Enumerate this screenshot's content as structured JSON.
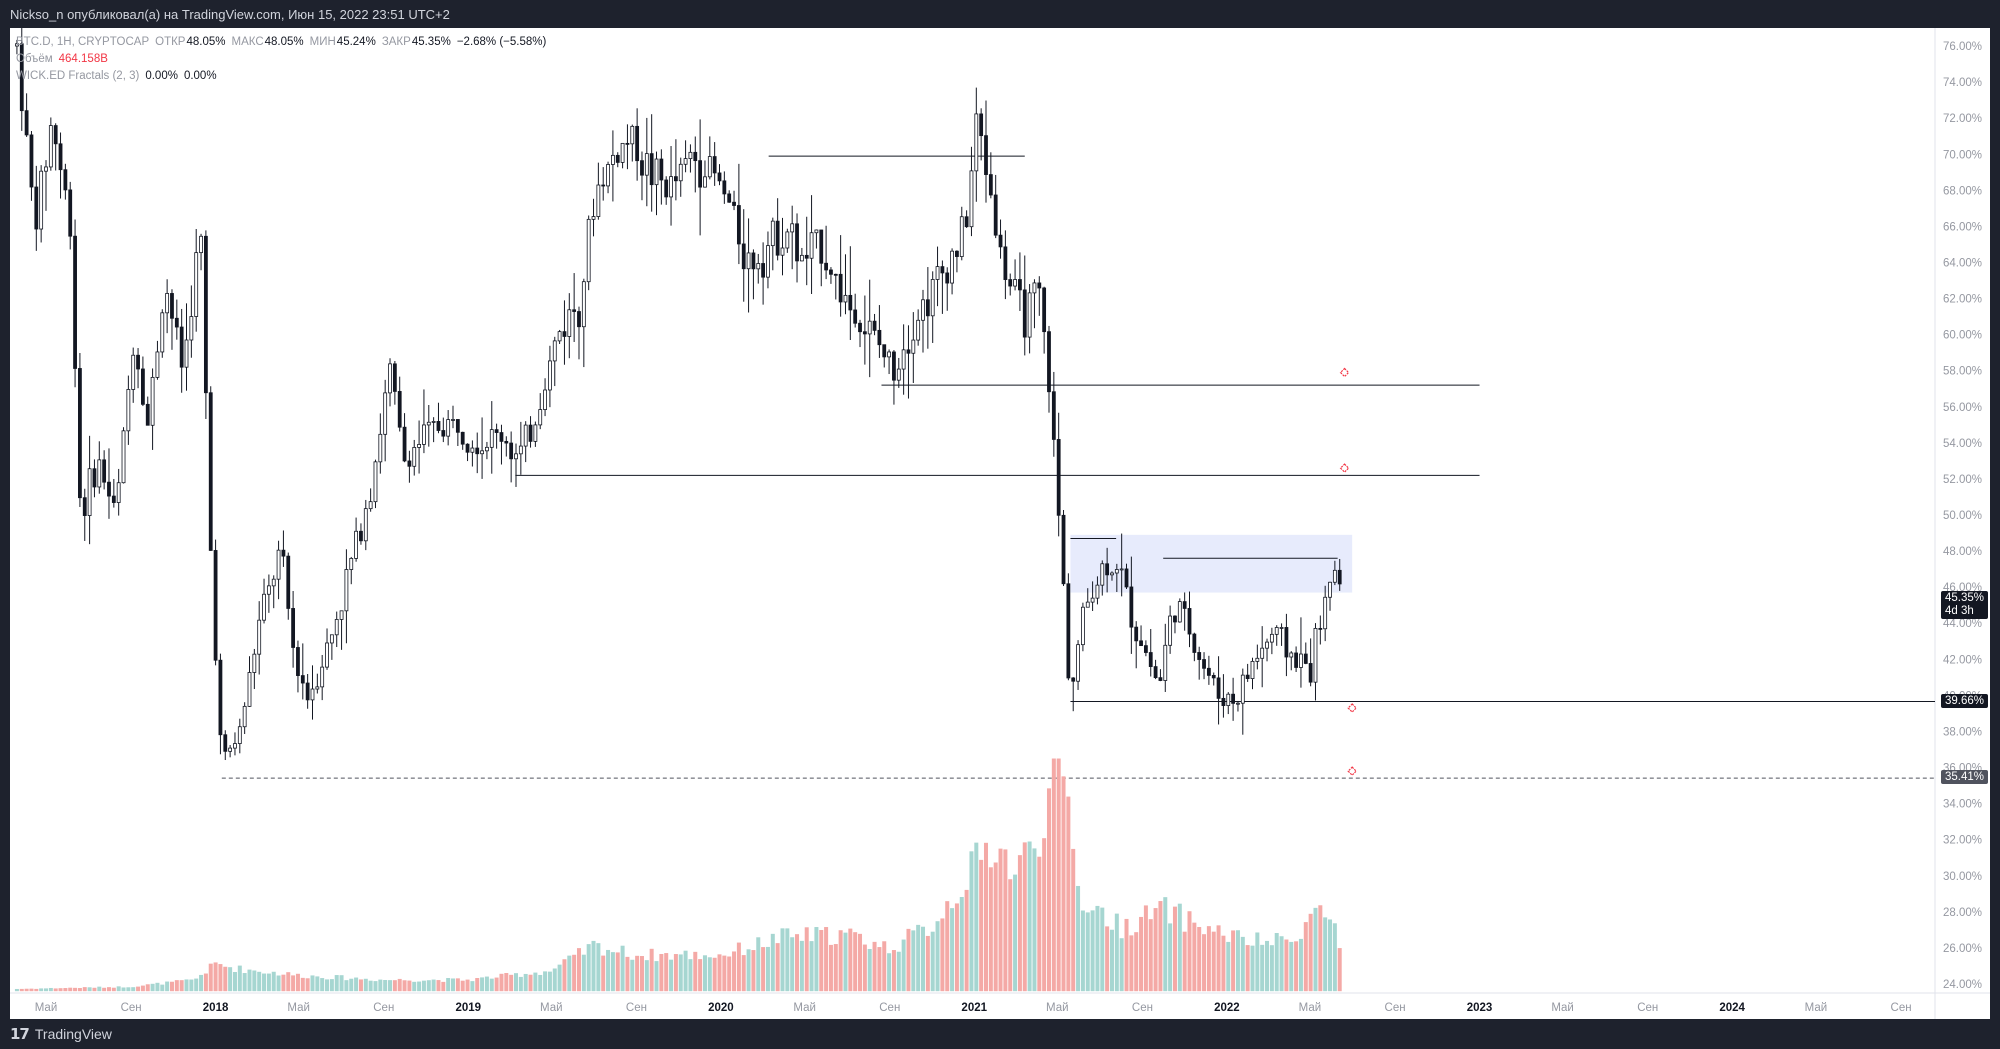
{
  "header": {
    "publish_line": "Nickso_n опубликовал(а) на TradingView.com, Июн 15, 2022 23:51 UTC+2"
  },
  "legend": {
    "symbol": "BTC.D, 1Н, CRYPTOCAP",
    "open_label": "ОТКР",
    "open_value": "48.05%",
    "high_label": "МАКС",
    "high_value": "48.05%",
    "low_label": "МИН",
    "low_value": "45.24%",
    "close_label": "ЗАКР",
    "close_value": "45.35%",
    "change": "−2.68% (−5.58%)",
    "volume_label": "Объём",
    "volume_value": "464.158B",
    "indicator_label": "WICK.ED Fractals (2, 3)",
    "indicator_v1": "0.00%",
    "indicator_v2": "0.00%"
  },
  "price_tags": {
    "current_value": "45.35%",
    "current_countdown": "4d 3h",
    "support_value": "39.66%",
    "low_value": "35.41%"
  },
  "footer": {
    "brand": "TradingView"
  },
  "colors": {
    "up_volume": "#a6d6d1",
    "down_volume": "#f4a9a6",
    "candle": "#131722",
    "zone": "#e3e8fb",
    "fractal": "#f23645"
  },
  "chart_data": {
    "type": "candlestick",
    "ylim": [
      23.5,
      77
    ],
    "yticks": [
      "24.00%",
      "26.00%",
      "28.00%",
      "30.00%",
      "32.00%",
      "34.00%",
      "36.00%",
      "38.00%",
      "40.00%",
      "42.00%",
      "44.00%",
      "46.00%",
      "48.00%",
      "50.00%",
      "52.00%",
      "54.00%",
      "56.00%",
      "58.00%",
      "60.00%",
      "62.00%",
      "64.00%",
      "66.00%",
      "68.00%",
      "70.00%",
      "72.00%",
      "74.00%",
      "76.00%"
    ],
    "xticks": [
      {
        "label": "Май",
        "date": "2017-05"
      },
      {
        "label": "Сен",
        "date": "2017-09"
      },
      {
        "label": "2018",
        "date": "2018-01"
      },
      {
        "label": "Май",
        "date": "2018-05"
      },
      {
        "label": "Сен",
        "date": "2018-09"
      },
      {
        "label": "2019",
        "date": "2019-01"
      },
      {
        "label": "Май",
        "date": "2019-05"
      },
      {
        "label": "Сен",
        "date": "2019-09"
      },
      {
        "label": "2020",
        "date": "2020-01"
      },
      {
        "label": "Май",
        "date": "2020-05"
      },
      {
        "label": "Сен",
        "date": "2020-09"
      },
      {
        "label": "2021",
        "date": "2021-01"
      },
      {
        "label": "Май",
        "date": "2021-05"
      },
      {
        "label": "Сен",
        "date": "2021-09"
      },
      {
        "label": "2022",
        "date": "2022-01"
      },
      {
        "label": "Май",
        "date": "2022-05"
      },
      {
        "label": "Сен",
        "date": "2022-09"
      },
      {
        "label": "2023",
        "date": "2023-01"
      },
      {
        "label": "Май",
        "date": "2023-05"
      },
      {
        "label": "Сен",
        "date": "2023-09"
      },
      {
        "label": "2024",
        "date": "2024-01"
      },
      {
        "label": "Май",
        "date": "2024-05"
      },
      {
        "label": "Сен",
        "date": "2024-09"
      }
    ],
    "price_path": [
      [
        "2017-03-20",
        76
      ],
      [
        "2017-04-15",
        66
      ],
      [
        "2017-05-10",
        72
      ],
      [
        "2017-06-05",
        66
      ],
      [
        "2017-06-20",
        50
      ],
      [
        "2017-07-15",
        53
      ],
      [
        "2017-08-10",
        50
      ],
      [
        "2017-09-05",
        60
      ],
      [
        "2017-09-25",
        55
      ],
      [
        "2017-10-20",
        63
      ],
      [
        "2017-11-15",
        58
      ],
      [
        "2017-12-10",
        66
      ],
      [
        "2017-12-25",
        48
      ],
      [
        "2018-01-10",
        36
      ],
      [
        "2018-02-05",
        38
      ],
      [
        "2018-03-05",
        44
      ],
      [
        "2018-04-05",
        48
      ],
      [
        "2018-04-25",
        42
      ],
      [
        "2018-05-15",
        40
      ],
      [
        "2018-06-15",
        43
      ],
      [
        "2018-07-20",
        48
      ],
      [
        "2018-08-15",
        52
      ],
      [
        "2018-09-10",
        58
      ],
      [
        "2018-09-30",
        53
      ],
      [
        "2018-10-20",
        54
      ],
      [
        "2018-11-20",
        55
      ],
      [
        "2018-12-20",
        55
      ],
      [
        "2019-01-20",
        54
      ],
      [
        "2019-02-20",
        54.5
      ],
      [
        "2019-03-15",
        53
      ],
      [
        "2019-04-05",
        55
      ],
      [
        "2019-05-10",
        60
      ],
      [
        "2019-06-10",
        62
      ],
      [
        "2019-07-05",
        68
      ],
      [
        "2019-08-01",
        70
      ],
      [
        "2019-08-25",
        71
      ],
      [
        "2019-09-20",
        69
      ],
      [
        "2019-10-20",
        68
      ],
      [
        "2019-11-20",
        70
      ],
      [
        "2019-12-20",
        69
      ],
      [
        "2020-01-15",
        67
      ],
      [
        "2020-02-10",
        64
      ],
      [
        "2020-03-10",
        65
      ],
      [
        "2020-04-05",
        66
      ],
      [
        "2020-04-25",
        64
      ],
      [
        "2020-05-25",
        65
      ],
      [
        "2020-06-15",
        63
      ],
      [
        "2020-07-15",
        61
      ],
      [
        "2020-08-15",
        59.5
      ],
      [
        "2020-09-05",
        58
      ],
      [
        "2020-09-25",
        60
      ],
      [
        "2020-10-25",
        62
      ],
      [
        "2020-11-25",
        64
      ],
      [
        "2020-12-20",
        66
      ],
      [
        "2021-01-05",
        72
      ],
      [
        "2021-01-20",
        69
      ],
      [
        "2021-02-10",
        64
      ],
      [
        "2021-03-10",
        61
      ],
      [
        "2021-04-05",
        62
      ],
      [
        "2021-04-20",
        57
      ],
      [
        "2021-05-01",
        51
      ],
      [
        "2021-05-10",
        46
      ],
      [
        "2021-05-20",
        40
      ],
      [
        "2021-06-10",
        45
      ],
      [
        "2021-07-05",
        47
      ],
      [
        "2021-07-25",
        47.5
      ],
      [
        "2021-08-20",
        44
      ],
      [
        "2021-09-10",
        42
      ],
      [
        "2021-09-25",
        40.5
      ],
      [
        "2021-10-15",
        45
      ],
      [
        "2021-11-05",
        44
      ],
      [
        "2021-11-25",
        42
      ],
      [
        "2021-12-20",
        40
      ],
      [
        "2022-01-15",
        39.8
      ],
      [
        "2022-02-10",
        42
      ],
      [
        "2022-03-10",
        43.5
      ],
      [
        "2022-04-10",
        42
      ],
      [
        "2022-05-01",
        41.5
      ],
      [
        "2022-05-15",
        44
      ],
      [
        "2022-06-01",
        46
      ],
      [
        "2022-06-09",
        48.05
      ],
      [
        "2022-06-15",
        45.35
      ]
    ],
    "horizontal_levels": [
      {
        "value": 39.66,
        "from": "2021-05-20",
        "to": "2024-11-01",
        "style": "solid"
      },
      {
        "value": 35.41,
        "from": "2018-01-10",
        "to": "2024-11-01",
        "style": "dashed"
      },
      {
        "value": 57.2,
        "from": "2020-08-20",
        "to": "2023-01-01",
        "style": "solid"
      },
      {
        "value": 52.2,
        "from": "2019-03-10",
        "to": "2023-01-01",
        "style": "solid"
      },
      {
        "value": 69.9,
        "from": "2020-03-10",
        "to": "2021-03-15",
        "style": "solid"
      },
      {
        "value": 47.6,
        "from": "2021-10-01",
        "to": "2022-06-10",
        "style": "solid"
      },
      {
        "value": 48.7,
        "from": "2021-05-20",
        "to": "2021-07-25",
        "style": "solid"
      }
    ],
    "zone": {
      "from": "2021-05-20",
      "to": "2022-07-01",
      "top": 48.9,
      "bottom": 45.7
    },
    "fractals": [
      {
        "date": "2022-06-20",
        "value": 57.9
      },
      {
        "date": "2022-06-20",
        "value": 52.6
      },
      {
        "date": "2022-07-01",
        "value": 39.3
      },
      {
        "date": "2022-07-01",
        "value": 35.8
      }
    ],
    "volume": {
      "max": 100,
      "points": [
        [
          "2017-03-20",
          1
        ],
        [
          "2017-09-01",
          2
        ],
        [
          "2017-12-01",
          5
        ],
        [
          "2018-01-01",
          12
        ],
        [
          "2018-02-01",
          10
        ],
        [
          "2018-05-01",
          7
        ],
        [
          "2018-09-01",
          5
        ],
        [
          "2019-01-01",
          5
        ],
        [
          "2019-05-01",
          9
        ],
        [
          "2019-07-01",
          20
        ],
        [
          "2019-09-01",
          16
        ],
        [
          "2020-01-01",
          16
        ],
        [
          "2020-04-01",
          24
        ],
        [
          "2020-07-01",
          25
        ],
        [
          "2020-09-01",
          19
        ],
        [
          "2020-11-01",
          29
        ],
        [
          "2021-01-01",
          55
        ],
        [
          "2021-02-01",
          66
        ],
        [
          "2021-03-01",
          52
        ],
        [
          "2021-04-01",
          68
        ],
        [
          "2021-05-01",
          96
        ],
        [
          "2021-05-20",
          80
        ],
        [
          "2021-06-01",
          42
        ],
        [
          "2021-08-01",
          28
        ],
        [
          "2021-10-01",
          36
        ],
        [
          "2021-12-01",
          28
        ],
        [
          "2022-02-01",
          22
        ],
        [
          "2022-04-01",
          22
        ],
        [
          "2022-05-15",
          37
        ],
        [
          "2022-06-10",
          27
        ],
        [
          "2022-06-15",
          14
        ]
      ]
    }
  }
}
